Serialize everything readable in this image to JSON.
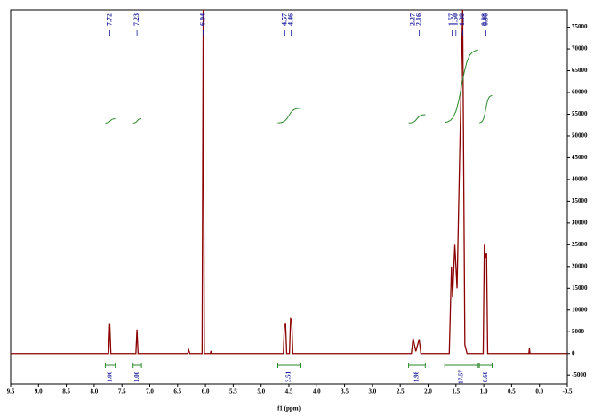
{
  "chart_data": {
    "type": "line",
    "xlabel": "f1 (ppm)",
    "color": "#8b0000",
    "label_color": "#1f1fa0",
    "integral_color": "#2a8a2a",
    "x": [
      9.5,
      7.74,
      7.72,
      7.7,
      7.25,
      7.23,
      7.21,
      6.32,
      6.3,
      6.28,
      6.06,
      6.04,
      6.02,
      5.91,
      5.9,
      5.89,
      4.6,
      4.58,
      4.56,
      4.54,
      4.49,
      4.47,
      4.45,
      4.43,
      2.3,
      2.27,
      2.22,
      2.16,
      2.13,
      1.62,
      1.58,
      1.56,
      1.52,
      1.48,
      1.38,
      1.34,
      1.3,
      1.01,
      0.99,
      0.97,
      0.95,
      0.93,
      0.19,
      0.18,
      0.17,
      -0.5
    ],
    "values": [
      0,
      0,
      7000,
      0,
      0,
      5500,
      0,
      0,
      800,
      0,
      0,
      79000,
      0,
      0,
      600,
      0,
      0,
      6800,
      6900,
      0,
      0,
      8000,
      7800,
      0,
      0,
      3500,
      500,
      3300,
      0,
      0,
      20000,
      13000,
      25000,
      15000,
      79000,
      2000,
      0,
      0,
      25000,
      22000,
      23000,
      0,
      0,
      1200,
      0,
      0
    ],
    "xlim": [
      9.5,
      -0.5
    ],
    "ylim": [
      -7000,
      79000
    ],
    "xticks": [
      {
        "value": 9.5,
        "label": "9.5"
      },
      {
        "value": 9,
        "label": "9.0"
      },
      {
        "value": 8.5,
        "label": "8.5"
      },
      {
        "value": 8,
        "label": "8.0"
      },
      {
        "value": 7.5,
        "label": "7.5"
      },
      {
        "value": 7,
        "label": "7.0"
      },
      {
        "value": 6.5,
        "label": "6.5"
      },
      {
        "value": 6,
        "label": "6.0"
      },
      {
        "value": 5.5,
        "label": "5.5"
      },
      {
        "value": 5,
        "label": "5.0"
      },
      {
        "value": 4.5,
        "label": "4.5"
      },
      {
        "value": 4,
        "label": "4.0"
      },
      {
        "value": 3.5,
        "label": "3.5"
      },
      {
        "value": 3,
        "label": "3.0"
      },
      {
        "value": 2.5,
        "label": "2.5"
      },
      {
        "value": 2,
        "label": "2.0"
      },
      {
        "value": 1.5,
        "label": "1.5"
      },
      {
        "value": 1,
        "label": "1.0"
      },
      {
        "value": 0.5,
        "label": "0.5"
      },
      {
        "value": 0,
        "label": "0.0"
      },
      {
        "value": -0.5,
        "label": "-0.5"
      }
    ],
    "yticks": [
      -5000,
      0,
      5000,
      10000,
      15000,
      20000,
      25000,
      30000,
      35000,
      40000,
      45000,
      50000,
      55000,
      60000,
      65000,
      70000,
      75000
    ],
    "peak_labels": [
      {
        "value": 7.72,
        "label": "7.72"
      },
      {
        "value": 7.23,
        "label": "7.23"
      },
      {
        "value": 6.04,
        "label": "6.04"
      },
      {
        "value": 4.57,
        "label": "4.57"
      },
      {
        "value": 4.46,
        "label": "4.46"
      },
      {
        "value": 2.27,
        "label": "2.27"
      },
      {
        "value": 2.16,
        "label": "2.16"
      },
      {
        "value": 1.57,
        "label": "1.57"
      },
      {
        "value": 1.5,
        "label": "1.50"
      },
      {
        "value": 1.38,
        "label": "1.38"
      },
      {
        "value": 0.98,
        "label": "0.98"
      },
      {
        "value": 0.96,
        "label": "0.96"
      }
    ],
    "integrals": [
      {
        "value": 1,
        "label": "1.00",
        "from": 7.8,
        "to": 7.62
      },
      {
        "value": 1,
        "label": "1.00",
        "from": 7.3,
        "to": 7.15
      },
      {
        "value": 3.51,
        "label": "3.51",
        "from": 4.7,
        "to": 4.3
      },
      {
        "value": 1.98,
        "label": "1.98",
        "from": 2.35,
        "to": 2.05
      },
      {
        "value": 17.57,
        "label": "17.57",
        "from": 1.7,
        "to": 1.1
      },
      {
        "value": 6.6,
        "label": "6.60",
        "from": 1.08,
        "to": 0.85
      }
    ]
  }
}
